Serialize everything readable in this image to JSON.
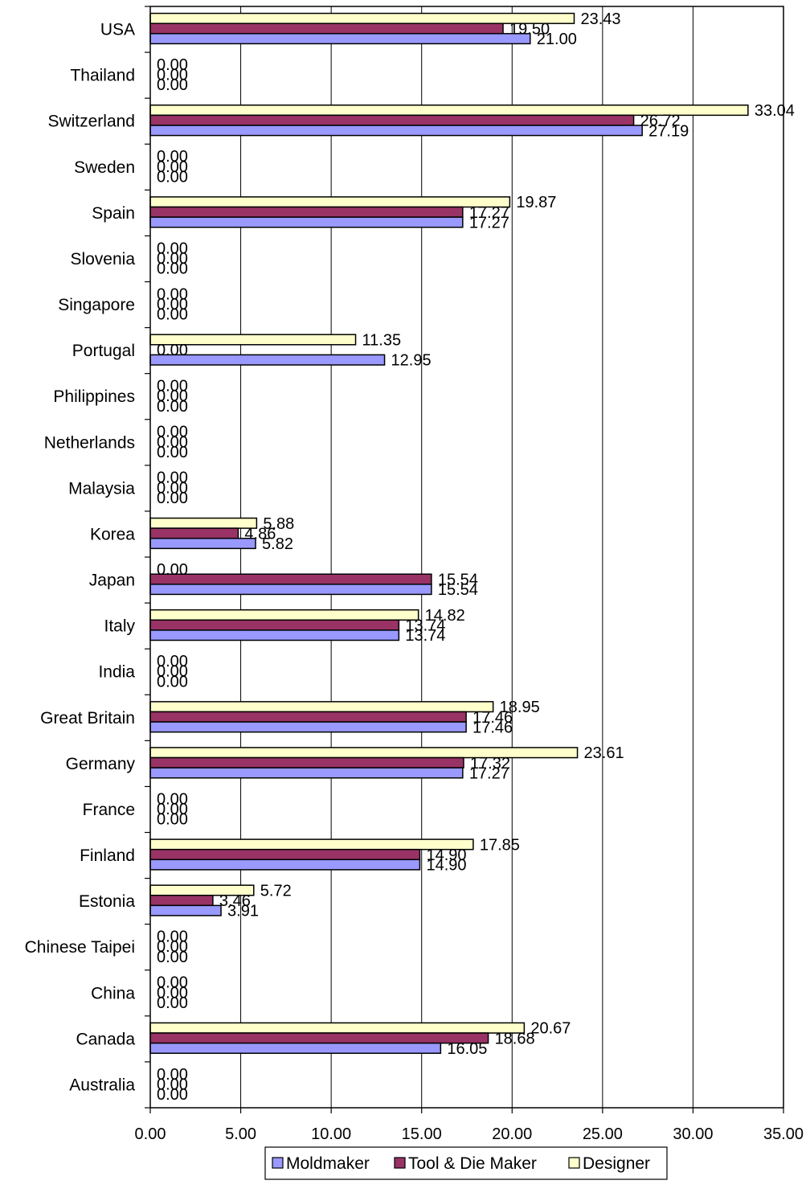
{
  "chart_data": {
    "type": "bar",
    "orientation": "horizontal",
    "categories": [
      "USA",
      "Thailand",
      "Switzerland",
      "Sweden",
      "Spain",
      "Slovenia",
      "Singapore",
      "Portugal",
      "Philippines",
      "Netherlands",
      "Malaysia",
      "Korea",
      "Japan",
      "Italy",
      "India",
      "Great Britain",
      "Germany",
      "France",
      "Finland",
      "Estonia",
      "Chinese Taipei",
      "China",
      "Canada",
      "Australia"
    ],
    "series": [
      {
        "name": "Moldmaker",
        "color": "#9999ff",
        "values": [
          21.0,
          0.0,
          27.19,
          0.0,
          17.27,
          0.0,
          0.0,
          12.95,
          0.0,
          0.0,
          0.0,
          5.82,
          15.54,
          13.74,
          0.0,
          17.46,
          17.27,
          0.0,
          14.9,
          3.91,
          0.0,
          0.0,
          16.05,
          0.0
        ],
        "labels": [
          "21.00",
          "0.00",
          "27.19",
          "0.00",
          "17.27",
          "0.00",
          "0.00",
          "12.95",
          "0.00",
          "0.00",
          "0.00",
          "5.82",
          "15.54",
          "13.74",
          "0.00",
          "17.46",
          "17.27",
          "0.00",
          "14.90",
          "3.91",
          "0.00",
          "0.00",
          "16.05",
          "0.00"
        ]
      },
      {
        "name": "Tool & Die Maker",
        "color": "#993366",
        "values": [
          19.5,
          0.0,
          26.72,
          0.0,
          17.27,
          0.0,
          0.0,
          0.0,
          0.0,
          0.0,
          0.0,
          4.86,
          15.54,
          13.74,
          0.0,
          17.46,
          17.32,
          0.0,
          14.9,
          3.46,
          0.0,
          0.0,
          18.68,
          0.0
        ],
        "labels": [
          "19.50",
          "0.00",
          "26.72",
          "0.00",
          "17.27",
          "0.00",
          "0.00",
          "0.00",
          "0.00",
          "0.00",
          "0.00",
          "4.86",
          "15.54",
          "13.74",
          "0.00",
          "17.46",
          "17.32",
          "0.00",
          "14.90",
          "3.46",
          "0.00",
          "0.00",
          "18.68",
          "0.00"
        ]
      },
      {
        "name": "Designer",
        "color": "#ffffcc",
        "values": [
          23.43,
          0.0,
          33.04,
          0.0,
          19.87,
          0.0,
          0.0,
          11.35,
          0.0,
          0.0,
          0.0,
          5.88,
          0.0,
          14.82,
          0.0,
          18.95,
          23.61,
          0.0,
          17.85,
          5.72,
          0.0,
          0.0,
          20.67,
          0.0
        ],
        "labels": [
          "23.43",
          "0.00",
          "33.04",
          "0.00",
          "19.87",
          "0.00",
          "0.00",
          "11.35",
          "0.00",
          "0.00",
          "0.00",
          "5.88",
          "0.00",
          "14.82",
          "0.00",
          "18.95",
          "23.61",
          "0.00",
          "17.85",
          "5.72",
          "0.00",
          "0.00",
          "20.67",
          "0.00"
        ]
      }
    ],
    "xlim": [
      0,
      35
    ],
    "xticks": [
      "0.00",
      "5.00",
      "10.00",
      "15.00",
      "20.00",
      "25.00",
      "30.00",
      "35.00"
    ],
    "grid": "vertical",
    "legend": "bottom",
    "title": "",
    "xlabel": "",
    "ylabel": ""
  }
}
